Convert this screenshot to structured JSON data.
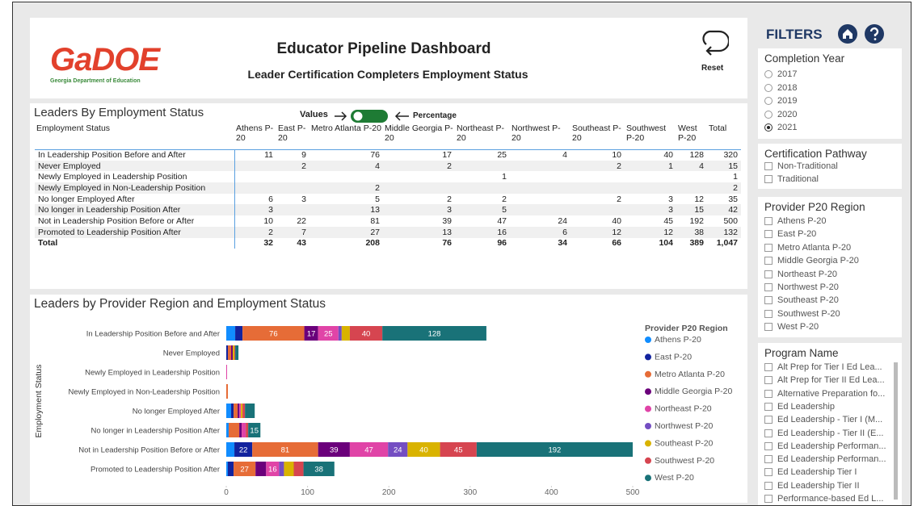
{
  "header": {
    "logo": "GaDOE",
    "logo_subtitle": "Georgia Department of Education",
    "title": "Educator Pipeline Dashboard",
    "subtitle": "Leader Certification Completers Employment Status",
    "reset": "Reset"
  },
  "table": {
    "title": "Leaders By Employment Status",
    "toggle_left": "Values",
    "toggle_right": "Percentage",
    "columns": [
      "Employment Status",
      "Athens P-20",
      "East P-20",
      "Metro Atlanta P-20",
      "Middle Georgia P-20",
      "Northeast P-20",
      "Northwest P-20",
      "Southeast P-20",
      "Southwest P-20",
      "West P-20",
      "Total"
    ],
    "rows": [
      [
        "In Leadership Position Before and After",
        11,
        9,
        76,
        17,
        25,
        4,
        10,
        40,
        128,
        320
      ],
      [
        "Never Employed",
        null,
        2,
        4,
        2,
        null,
        null,
        2,
        1,
        4,
        15
      ],
      [
        "Newly Employed in Leadership Position",
        null,
        null,
        null,
        null,
        1,
        null,
        null,
        null,
        null,
        1
      ],
      [
        "Newly Employed in Non-Leadership Position",
        null,
        null,
        2,
        null,
        null,
        null,
        null,
        null,
        null,
        2
      ],
      [
        "No longer Employed After",
        6,
        3,
        5,
        2,
        2,
        null,
        2,
        3,
        12,
        35
      ],
      [
        "No longer in Leadership Position After",
        3,
        null,
        13,
        3,
        5,
        null,
        null,
        3,
        15,
        42
      ],
      [
        "Not in Leadership Position Before or After",
        10,
        22,
        81,
        39,
        47,
        24,
        40,
        45,
        192,
        500
      ],
      [
        "Promoted to Leadership Position After",
        2,
        7,
        27,
        13,
        16,
        6,
        12,
        12,
        38,
        132
      ],
      [
        "Total",
        32,
        43,
        208,
        76,
        96,
        34,
        66,
        104,
        389,
        "1,047"
      ]
    ]
  },
  "chart_data": {
    "type": "bar",
    "orientation": "horizontal",
    "stacked": true,
    "title": "Leaders by Provider Region and Employment Status",
    "y_label": "Employment Status",
    "legend_title": "Provider P20 Region",
    "legend_position": "right",
    "categories": [
      "In Leadership Position Before and After",
      "Never Employed",
      "Newly Employed in Leadership Position",
      "Newly Employed in Non-Leadership Position",
      "No longer Employed After",
      "No longer in Leadership Position After",
      "Not in Leadership Position Before or After",
      "Promoted to Leadership Position After"
    ],
    "xlim": [
      0,
      500
    ],
    "xticks": [
      0,
      100,
      200,
      300,
      400,
      500
    ],
    "series": [
      {
        "name": "Athens P-20",
        "color": "#118DFF",
        "values": [
          11,
          null,
          null,
          null,
          6,
          3,
          10,
          2
        ]
      },
      {
        "name": "East P-20",
        "color": "#12239E",
        "values": [
          9,
          2,
          null,
          null,
          3,
          null,
          22,
          7
        ]
      },
      {
        "name": "Metro Atlanta P-20",
        "color": "#E66C37",
        "values": [
          76,
          4,
          null,
          2,
          5,
          13,
          81,
          27
        ]
      },
      {
        "name": "Middle Georgia P-20",
        "color": "#6B007B",
        "values": [
          17,
          2,
          null,
          null,
          2,
          3,
          39,
          13
        ]
      },
      {
        "name": "Northeast P-20",
        "color": "#E044A7",
        "values": [
          25,
          null,
          1,
          null,
          2,
          5,
          47,
          16
        ]
      },
      {
        "name": "Northwest P-20",
        "color": "#744EC2",
        "values": [
          4,
          null,
          null,
          null,
          null,
          null,
          24,
          6
        ]
      },
      {
        "name": "Southeast P-20",
        "color": "#D9B300",
        "values": [
          10,
          2,
          null,
          null,
          2,
          null,
          40,
          12
        ]
      },
      {
        "name": "Southwest P-20",
        "color": "#D64550",
        "values": [
          40,
          1,
          null,
          null,
          3,
          3,
          45,
          12
        ]
      },
      {
        "name": "West P-20",
        "color": "#197278",
        "values": [
          128,
          4,
          null,
          null,
          12,
          15,
          192,
          38
        ]
      }
    ]
  },
  "filters": {
    "title": "FILTERS",
    "completion_year": {
      "title": "Completion Year",
      "options": [
        "2017",
        "2018",
        "2019",
        "2020",
        "2021"
      ],
      "selected": "2021"
    },
    "certification_pathway": {
      "title": "Certification Pathway",
      "options": [
        "Non-Traditional",
        "Traditional"
      ]
    },
    "provider_region": {
      "title": "Provider P20 Region",
      "options": [
        "Athens P-20",
        "East P-20",
        "Metro Atlanta P-20",
        "Middle Georgia P-20",
        "Northeast P-20",
        "Northwest P-20",
        "Southeast P-20",
        "Southwest P-20",
        "West P-20"
      ]
    },
    "program_name": {
      "title": "Program Name",
      "options": [
        "Alt Prep for Tier I Ed Lea...",
        "Alt Prep for Tier II Ed Lea...",
        "Alternative Preparation fo...",
        "Ed Leadership",
        "Ed Leadership - Tier I (M...",
        "Ed Leadership - Tier II (E...",
        "Ed Leadership Performan...",
        "Ed Leadership Performan...",
        "Ed Leadership Tier I",
        "Ed Leadership Tier II",
        "Performance-based Ed L..."
      ]
    }
  }
}
